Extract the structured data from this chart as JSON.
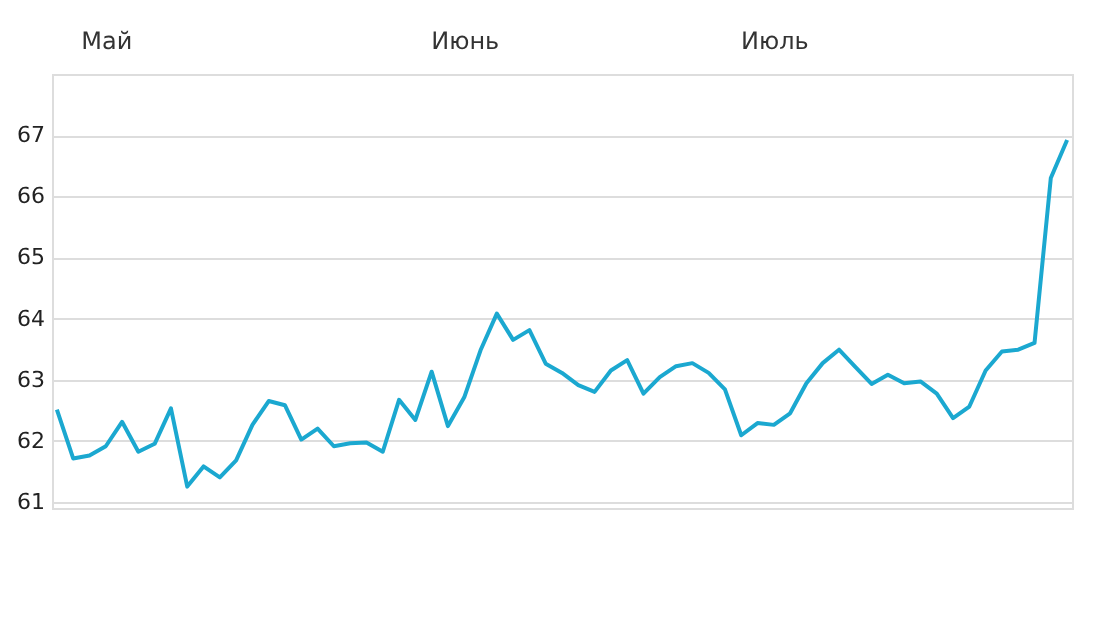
{
  "chart_data": {
    "type": "line",
    "categories": [
      null,
      null,
      null,
      "Май",
      null,
      null,
      null,
      null,
      null,
      null,
      null,
      null,
      null,
      null,
      null,
      null,
      null,
      null,
      null,
      null,
      null,
      null,
      null,
      null,
      null,
      "Июнь",
      null,
      null,
      null,
      null,
      null,
      null,
      null,
      null,
      null,
      null,
      null,
      null,
      null,
      null,
      null,
      null,
      null,
      null,
      "Июль",
      null,
      null,
      null,
      null,
      null,
      null,
      null,
      null,
      null,
      null,
      null,
      null,
      null,
      null,
      null,
      null,
      null,
      null
    ],
    "series": [
      {
        "color": "#1ba8d0",
        "values": [
          62.51,
          61.71,
          61.76,
          61.91,
          62.31,
          61.82,
          61.95,
          62.53,
          61.25,
          61.58,
          61.4,
          61.68,
          62.26,
          62.65,
          62.58,
          62.02,
          62.2,
          61.91,
          61.96,
          61.97,
          61.82,
          62.67,
          62.34,
          63.13,
          62.24,
          62.71,
          63.48,
          64.08,
          63.65,
          63.81,
          63.26,
          63.11,
          62.91,
          62.8,
          63.15,
          63.32,
          62.77,
          63.04,
          63.22,
          63.27,
          63.11,
          62.84,
          62.09,
          62.29,
          62.26,
          62.45,
          62.94,
          63.27,
          63.49,
          63.21,
          62.93,
          63.08,
          62.94,
          62.97,
          62.77,
          62.37,
          62.56,
          63.15,
          63.46,
          63.49,
          63.6,
          66.3,
          66.92
        ]
      }
    ],
    "ylim": [
      60.9,
      68
    ],
    "yticks": [
      61,
      62,
      63,
      64,
      65,
      66,
      67
    ],
    "grid": "y"
  }
}
